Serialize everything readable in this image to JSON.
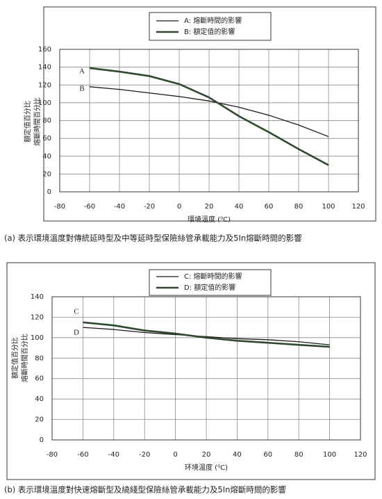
{
  "chart_data": [
    {
      "type": "line",
      "legend": "top",
      "grid": true,
      "xlim": [
        -80,
        120
      ],
      "xticks": [
        -80,
        -60,
        -40,
        -20,
        0,
        20,
        40,
        60,
        80,
        100,
        120
      ],
      "ylim": [
        0,
        160
      ],
      "yticks": [
        0,
        20,
        40,
        60,
        80,
        100,
        120,
        140,
        160
      ],
      "ylabel": [
        "額定值百分比",
        "熔斷時間百分比"
      ],
      "xlabel": "環境溫度 (⁰C)",
      "caption": "(a) 表示環境溫度對傳統延時型及中等延時型保險絲管承載能力及5In熔斷時間的影響",
      "annotations": [
        "A",
        "B"
      ],
      "x": [
        -60,
        -40,
        -20,
        0,
        20,
        40,
        60,
        80,
        100
      ],
      "series": [
        {
          "name": "A: 熔斷時間的影響",
          "color": "#1a1a1a",
          "linewidth": 1.3,
          "values": [
            118,
            115,
            111,
            107,
            102,
            95,
            86,
            75,
            62
          ]
        },
        {
          "name": "B: 額定值的影響",
          "color": "#2e4a2e",
          "linewidth": 2.6,
          "values": [
            139,
            135,
            130,
            121,
            106,
            85,
            67,
            48,
            30
          ]
        }
      ]
    },
    {
      "type": "line",
      "legend": "top",
      "grid": true,
      "xlim": [
        -80,
        120
      ],
      "xticks": [
        -80,
        -60,
        -40,
        -20,
        0,
        20,
        40,
        60,
        80,
        100,
        120
      ],
      "ylim": [
        0,
        140
      ],
      "yticks": [
        0,
        20,
        40,
        60,
        80,
        100,
        120,
        140
      ],
      "ylabel": [
        "額定值百分比",
        "熔斷時間百分比"
      ],
      "xlabel": "环境温度 (⁰C)",
      "caption": "(b) 表示環境溫度對快速熔斷型及繞綫型保險絲管承載能力及5In熔斷時間的影響",
      "annotations": [
        "C",
        "D"
      ],
      "x": [
        -60,
        -40,
        -20,
        0,
        20,
        40,
        60,
        80,
        100
      ],
      "series": [
        {
          "name": "C: 熔斷時間的影響",
          "color": "#1a1a1a",
          "linewidth": 1.3,
          "values": [
            110,
            108,
            105,
            103,
            101,
            99,
            98,
            96,
            93
          ]
        },
        {
          "name": "D: 額定值的影響",
          "color": "#2e4a2e",
          "linewidth": 2.6,
          "values": [
            115,
            112,
            107,
            104,
            100,
            97,
            95,
            93,
            91
          ]
        }
      ]
    }
  ]
}
